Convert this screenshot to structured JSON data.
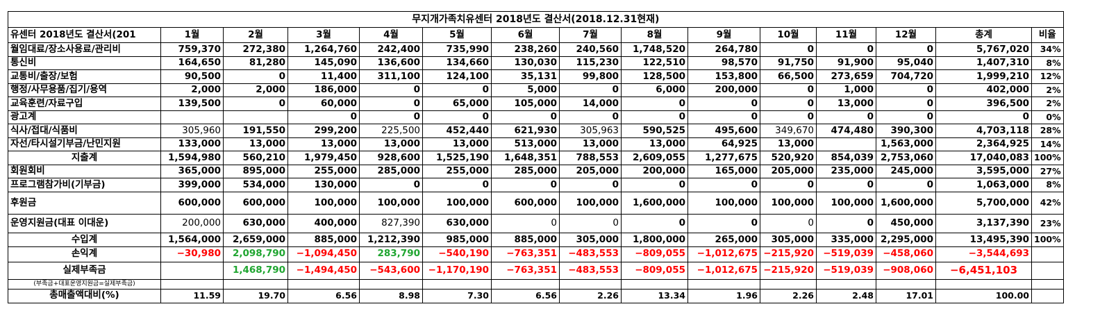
{
  "title": "무지개가족치유센터 2018년도 결산서(2018.12.31현재)",
  "header": {
    "label": "유센터 2018년도 결산서(201",
    "months": [
      "1월",
      "2월",
      "3월",
      "4월",
      "5월",
      "6월",
      "7월",
      "8월",
      "9월",
      "10월",
      "11월",
      "12월"
    ],
    "total": "총계",
    "ratio": "비율"
  },
  "expense_rows": [
    {
      "label": "월임대료/장소사용료/관리비",
      "values": [
        "759,370",
        "272,380",
        "1,264,760",
        "242,400",
        "735,990",
        "238,260",
        "240,560",
        "1,748,520",
        "264,780",
        "0",
        "0",
        "0"
      ],
      "total": "5,767,020",
      "ratio": "34%"
    },
    {
      "label": "통신비",
      "values": [
        "164,650",
        "81,280",
        "145,090",
        "136,600",
        "134,660",
        "130,030",
        "115,230",
        "122,510",
        "98,570",
        "91,750",
        "91,900",
        "95,040"
      ],
      "total": "1,407,310",
      "ratio": "8%"
    },
    {
      "label": "교통비/출장/보험",
      "values": [
        "90,500",
        "0",
        "11,400",
        "311,100",
        "124,100",
        "35,131",
        "99,800",
        "128,500",
        "153,800",
        "66,500",
        "273,659",
        "704,720"
      ],
      "total": "1,999,210",
      "ratio": "12%"
    },
    {
      "label": "행정/사무용품/집기/용역",
      "values": [
        "2,000",
        "2,000",
        "186,000",
        "0",
        "0",
        "5,000",
        "0",
        "6,000",
        "200,000",
        "0",
        "1,000",
        "0"
      ],
      "total": "402,000",
      "ratio": "2%"
    },
    {
      "label": "교육훈련/자료구입",
      "values": [
        "139,500",
        "0",
        "60,000",
        "0",
        "65,000",
        "105,000",
        "14,000",
        "0",
        "0",
        "0",
        "13,000",
        "0"
      ],
      "total": "396,500",
      "ratio": "2%"
    },
    {
      "label": "광고계",
      "values": [
        "",
        "",
        "0",
        "0",
        "0",
        "0",
        "0",
        "0",
        "0",
        "0",
        "0",
        "0"
      ],
      "total": "0",
      "ratio": "0%"
    },
    {
      "label": "식사/접대/식품비",
      "values": [
        "305,960",
        "191,550",
        "299,200",
        "225,500",
        "452,440",
        "621,930",
        "305,963",
        "590,525",
        "495,600",
        "349,670",
        "474,480",
        "390,300"
      ],
      "total": "4,703,118",
      "ratio": "28%"
    },
    {
      "label": "자선/타시설기부금/난민지원",
      "values": [
        "133,000",
        "13,000",
        "13,000",
        "13,000",
        "13,000",
        "513,000",
        "13,000",
        "13,000",
        "64,925",
        "13,000",
        "",
        "1,563,000"
      ],
      "total": "2,364,925",
      "ratio": "14%"
    }
  ],
  "expense_total": {
    "label": "지출계",
    "values": [
      "1,594,980",
      "560,210",
      "1,979,450",
      "928,600",
      "1,525,190",
      "1,648,351",
      "788,553",
      "2,609,055",
      "1,277,675",
      "520,920",
      "854,039",
      "2,753,060"
    ],
    "total": "17,040,083",
    "ratio": "100%"
  },
  "income_rows": [
    {
      "label": "회원회비",
      "values": [
        "365,000",
        "895,000",
        "255,000",
        "285,000",
        "255,000",
        "285,000",
        "205,000",
        "200,000",
        "165,000",
        "205,000",
        "235,000",
        "245,000"
      ],
      "total": "3,595,000",
      "ratio": "27%"
    },
    {
      "label": "프로그램참가비(기부금)",
      "values": [
        "399,000",
        "534,000",
        "130,000",
        "0",
        "0",
        "0",
        "0",
        "0",
        "0",
        "0",
        "0",
        "0"
      ],
      "total": "1,063,000",
      "ratio": "8%"
    },
    {
      "label": "후원금",
      "values": [
        "600,000",
        "600,000",
        "100,000",
        "100,000",
        "100,000",
        "600,000",
        "100,000",
        "1,600,000",
        "100,000",
        "100,000",
        "100,000",
        "1,600,000"
      ],
      "total": "5,700,000",
      "ratio": "42%"
    },
    {
      "label": "운영지원금(대표 이대운)",
      "values": [
        "200,000",
        "630,000",
        "400,000",
        "827,390",
        "630,000",
        "0",
        "0",
        "0",
        "0",
        "0",
        "0",
        "450,000"
      ],
      "total": "3,137,390",
      "ratio": "23%"
    }
  ],
  "income_total": {
    "label": "수입계",
    "values": [
      "1,564,000",
      "2,659,000",
      "885,000",
      "1,212,390",
      "985,000",
      "885,000",
      "305,000",
      "1,800,000",
      "265,000",
      "305,000",
      "335,000",
      "2,295,000"
    ],
    "total": "13,495,390",
    "ratio": "100%"
  },
  "profit": {
    "label": "손익계",
    "values": [
      "−30,980",
      "2,098,790",
      "−1,094,450",
      "283,790",
      "−540,190",
      "−763,351",
      "−483,553",
      "−809,055",
      "−1,012,675",
      "−215,920",
      "−519,039",
      "−458,060"
    ],
    "total": "−3,544,693"
  },
  "deficit": {
    "label": "실제부족금",
    "values": [
      "",
      "1,468,790",
      "−1,494,450",
      "−543,600",
      "−1,170,190",
      "−763,351",
      "−483,553",
      "−809,055",
      "−1,012,675",
      "−215,920",
      "−519,039",
      "−908,060"
    ],
    "total": "−6,451,103"
  },
  "note": "(부족금+대표운영지원금=실제부족금)",
  "ratio_row": {
    "label": "총매출액대비(%)",
    "values": [
      "11.59",
      "19.70",
      "6.56",
      "8.98",
      "7.30",
      "6.56",
      "2.26",
      "13.34",
      "1.96",
      "2.26",
      "2.48",
      "17.01"
    ],
    "total": "100.00"
  },
  "colors": {
    "negative": "#ff0000",
    "positive": "#1fa530",
    "text": "#000000"
  }
}
